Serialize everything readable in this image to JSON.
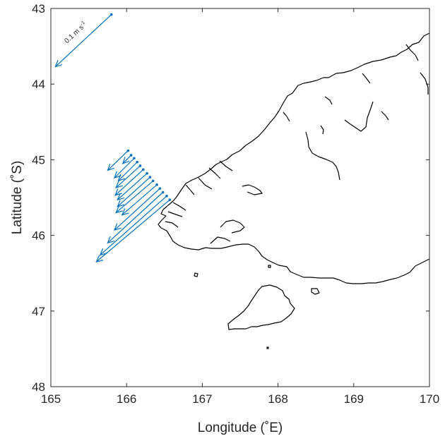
{
  "chart_data": {
    "type": "vector",
    "title": "",
    "xlabel": "Longitude (˚E)",
    "ylabel": "Latitude (˚S)",
    "xlim": [
      165,
      170
    ],
    "ylim": [
      43,
      48
    ],
    "y_reversed": true,
    "xticks": [
      "165",
      "166",
      "167",
      "168",
      "169",
      "170"
    ],
    "yticks": [
      "43",
      "44",
      "45",
      "46",
      "47",
      "48"
    ],
    "arrow_color": "#0072BD",
    "coast_color": "#000000",
    "grid": false,
    "vectors": [
      {
        "lon": 166.02,
        "lat": 44.88,
        "tip_lon": 165.75,
        "tip_lat": 45.14
      },
      {
        "lon": 166.06,
        "lat": 44.94,
        "tip_lon": 165.95,
        "tip_lat": 45.05
      },
      {
        "lon": 166.1,
        "lat": 44.98,
        "tip_lon": 165.84,
        "tip_lat": 45.24
      },
      {
        "lon": 166.14,
        "lat": 45.03,
        "tip_lon": 165.89,
        "tip_lat": 45.28
      },
      {
        "lon": 166.18,
        "lat": 45.08,
        "tip_lon": 165.86,
        "tip_lat": 45.37
      },
      {
        "lon": 166.22,
        "lat": 45.13,
        "tip_lon": 165.85,
        "tip_lat": 45.47
      },
      {
        "lon": 166.27,
        "lat": 45.18,
        "tip_lon": 165.88,
        "tip_lat": 45.53
      },
      {
        "lon": 166.31,
        "lat": 45.23,
        "tip_lon": 165.88,
        "tip_lat": 45.62
      },
      {
        "lon": 166.35,
        "lat": 45.28,
        "tip_lon": 165.86,
        "tip_lat": 45.7
      },
      {
        "lon": 166.4,
        "lat": 45.33,
        "tip_lon": 165.94,
        "tip_lat": 45.73
      },
      {
        "lon": 166.44,
        "lat": 45.38,
        "tip_lon": 165.84,
        "tip_lat": 45.93
      },
      {
        "lon": 166.48,
        "lat": 45.43,
        "tip_lon": 165.75,
        "tip_lat": 46.1
      },
      {
        "lon": 166.53,
        "lat": 45.48,
        "tip_lon": 165.65,
        "tip_lat": 46.26
      },
      {
        "lon": 166.57,
        "lat": 45.53,
        "tip_lon": 165.6,
        "tip_lat": 46.35
      }
    ],
    "scale_vector": {
      "lon": 165.8,
      "lat": 43.08,
      "tip_lon": 165.06,
      "tip_lat": 43.77,
      "label": "0.1 m s",
      "label_sup": "-1"
    }
  }
}
